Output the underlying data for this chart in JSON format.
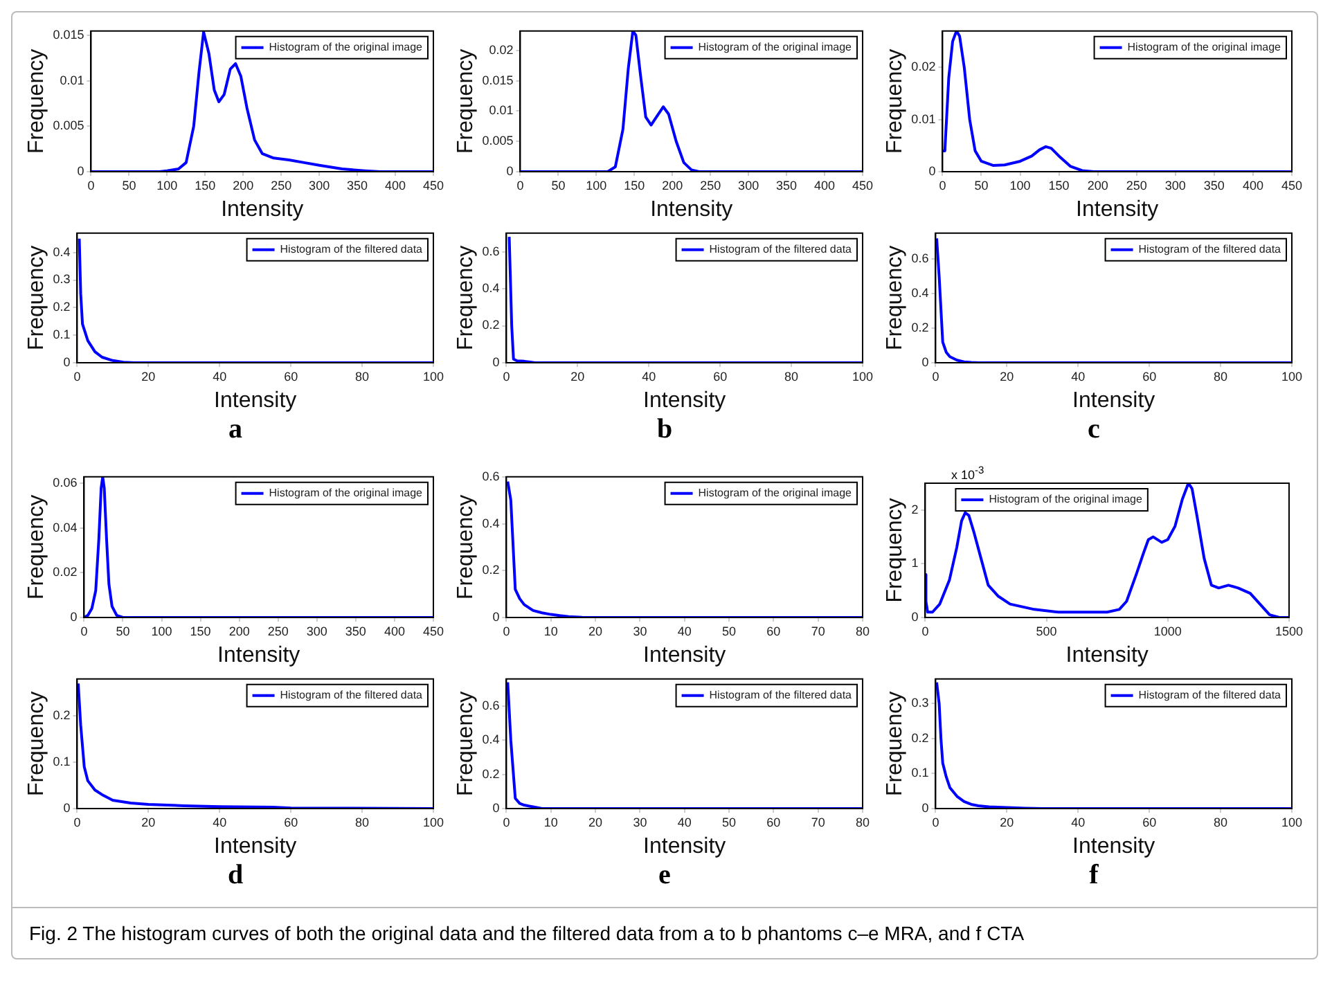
{
  "chart_data": [
    {
      "type": "line",
      "xlabel": "Intensity",
      "ylabel": "Frequency",
      "legend": "top right",
      "xlim": [
        0,
        450
      ],
      "ylim": [
        0,
        0.0155
      ],
      "xticks": [
        0,
        50,
        100,
        150,
        200,
        250,
        300,
        350,
        400,
        450
      ],
      "yticks": [
        0,
        0.005,
        0.01,
        0.015
      ],
      "x": [
        0,
        90,
        100,
        115,
        125,
        135,
        142,
        148,
        155,
        162,
        168,
        175,
        183,
        190,
        197,
        205,
        215,
        225,
        240,
        260,
        280,
        300,
        330,
        360,
        380,
        450
      ],
      "series": [
        {
          "name": "Histogram of the original image",
          "color": "#0000ff",
          "values": [
            0,
            0,
            0.0001,
            0.0003,
            0.001,
            0.005,
            0.011,
            0.0154,
            0.013,
            0.009,
            0.0077,
            0.0085,
            0.0113,
            0.0119,
            0.0105,
            0.007,
            0.0035,
            0.002,
            0.0015,
            0.0013,
            0.001,
            0.0007,
            0.0003,
            0.0001,
            0,
            0
          ]
        }
      ]
    },
    {
      "type": "line",
      "xlabel": "Intensity",
      "ylabel": "Frequency",
      "legend": "top right",
      "xlim": [
        0,
        450
      ],
      "ylim": [
        0,
        0.0232
      ],
      "xticks": [
        0,
        50,
        100,
        150,
        200,
        250,
        300,
        350,
        400,
        450
      ],
      "yticks": [
        0,
        0.005,
        0.01,
        0.015,
        0.02
      ],
      "x": [
        0,
        115,
        125,
        135,
        142,
        148,
        152,
        158,
        165,
        172,
        180,
        188,
        195,
        205,
        215,
        225,
        235,
        450
      ],
      "series": [
        {
          "name": "Histogram of the original image",
          "color": "#0000ff",
          "values": [
            0,
            0,
            0.0008,
            0.007,
            0.017,
            0.0232,
            0.0225,
            0.016,
            0.009,
            0.0077,
            0.0092,
            0.0107,
            0.0095,
            0.005,
            0.0015,
            0.0003,
            0,
            0
          ]
        }
      ]
    },
    {
      "type": "line",
      "xlabel": "Intensity",
      "ylabel": "Frequency",
      "legend": "top right",
      "xlim": [
        0,
        450
      ],
      "ylim": [
        0,
        0.027
      ],
      "xticks": [
        0,
        50,
        100,
        150,
        200,
        250,
        300,
        350,
        400,
        450
      ],
      "yticks": [
        0,
        0.01,
        0.02
      ],
      "x": [
        0,
        3,
        8,
        13,
        18,
        22,
        28,
        35,
        42,
        50,
        65,
        80,
        100,
        115,
        125,
        133,
        140,
        150,
        165,
        180,
        195,
        450
      ],
      "series": [
        {
          "name": "Histogram of the original image",
          "color": "#0000ff",
          "values": [
            0.004,
            0.004,
            0.018,
            0.025,
            0.027,
            0.026,
            0.02,
            0.01,
            0.004,
            0.002,
            0.0012,
            0.0013,
            0.002,
            0.003,
            0.0042,
            0.0048,
            0.0045,
            0.003,
            0.001,
            0.0002,
            0,
            0
          ]
        }
      ]
    },
    {
      "type": "line",
      "xlabel": "Intensity",
      "ylabel": "Frequency",
      "legend": "top right",
      "xlim": [
        0,
        100
      ],
      "ylim": [
        0,
        0.47
      ],
      "xticks": [
        0,
        20,
        40,
        60,
        80,
        100
      ],
      "yticks": [
        0,
        0.1,
        0.2,
        0.3,
        0.4
      ],
      "annotations": [
        "a"
      ],
      "x": [
        0.6,
        1,
        1.5,
        3,
        5,
        7,
        10,
        13,
        16,
        100
      ],
      "series": [
        {
          "name": "Histogram of the filtered data",
          "color": "#0000ff",
          "values": [
            0.45,
            0.25,
            0.14,
            0.08,
            0.04,
            0.02,
            0.008,
            0.002,
            0,
            0
          ]
        }
      ]
    },
    {
      "type": "line",
      "xlabel": "Intensity",
      "ylabel": "Frequency",
      "legend": "top right",
      "xlim": [
        0,
        100
      ],
      "ylim": [
        0,
        0.7
      ],
      "xticks": [
        0,
        20,
        40,
        60,
        80,
        100
      ],
      "yticks": [
        0,
        0.2,
        0.4,
        0.6
      ],
      "annotations": [
        "b"
      ],
      "x": [
        0.8,
        1.5,
        2,
        3,
        5,
        7,
        8,
        100
      ],
      "series": [
        {
          "name": "Histogram of the filtered data",
          "color": "#0000ff",
          "values": [
            0.68,
            0.2,
            0.02,
            0.01,
            0.008,
            0.003,
            0,
            0
          ]
        }
      ]
    },
    {
      "type": "line",
      "xlabel": "Intensity",
      "ylabel": "Frequency",
      "legend": "top right",
      "xlim": [
        0,
        100
      ],
      "ylim": [
        0,
        0.75
      ],
      "xticks": [
        0,
        20,
        40,
        60,
        80,
        100
      ],
      "yticks": [
        0,
        0.2,
        0.4,
        0.6
      ],
      "annotations": [
        "c"
      ],
      "x": [
        0.3,
        1,
        2,
        3,
        4,
        6,
        8,
        10,
        12,
        100
      ],
      "series": [
        {
          "name": "Histogram of the filtered data",
          "color": "#0000ff",
          "values": [
            0.72,
            0.5,
            0.12,
            0.06,
            0.035,
            0.015,
            0.005,
            0.002,
            0,
            0
          ]
        }
      ]
    },
    {
      "type": "line",
      "xlabel": "Intensity",
      "ylabel": "Frequency",
      "legend": "top right",
      "xlim": [
        0,
        450
      ],
      "ylim": [
        0,
        0.063
      ],
      "xticks": [
        0,
        50,
        100,
        150,
        200,
        250,
        300,
        350,
        400,
        450
      ],
      "yticks": [
        0,
        0.02,
        0.04,
        0.06
      ],
      "x": [
        0,
        5,
        10,
        15,
        19,
        22,
        24,
        26,
        29,
        32,
        36,
        42,
        50,
        450
      ],
      "series": [
        {
          "name": "Histogram of the original image",
          "color": "#0000ff",
          "values": [
            0,
            0.001,
            0.004,
            0.012,
            0.035,
            0.058,
            0.063,
            0.058,
            0.035,
            0.015,
            0.005,
            0.001,
            0,
            0
          ]
        }
      ]
    },
    {
      "type": "line",
      "xlabel": "Intensity",
      "ylabel": "Frequency",
      "legend": "top right",
      "xlim": [
        0,
        80
      ],
      "ylim": [
        0,
        0.6
      ],
      "xticks": [
        0,
        10,
        20,
        30,
        40,
        50,
        60,
        70,
        80
      ],
      "yticks": [
        0,
        0.2,
        0.4,
        0.6
      ],
      "x": [
        0.3,
        1,
        2,
        3,
        4,
        6,
        8,
        10,
        12,
        14,
        17,
        20,
        80
      ],
      "series": [
        {
          "name": "Histogram of the original image",
          "color": "#0000ff",
          "values": [
            0.58,
            0.5,
            0.12,
            0.08,
            0.055,
            0.03,
            0.02,
            0.013,
            0.008,
            0.004,
            0.001,
            0,
            0
          ]
        }
      ]
    },
    {
      "type": "line",
      "xlabel": "Intensity",
      "ylabel": "Frequency",
      "legend": "top left",
      "xlim": [
        0,
        1500
      ],
      "ylim": [
        0,
        2.5
      ],
      "xticks": [
        0,
        500,
        1000,
        1500
      ],
      "yticks": [
        0,
        1,
        2
      ],
      "annotations": [
        "x 10$^{-3}$"
      ],
      "x": [
        0,
        3,
        10,
        30,
        60,
        100,
        130,
        150,
        165,
        180,
        200,
        230,
        260,
        300,
        350,
        450,
        550,
        650,
        750,
        800,
        830,
        870,
        900,
        920,
        940,
        975,
        1000,
        1030,
        1060,
        1085,
        1100,
        1120,
        1150,
        1180,
        1210,
        1250,
        1290,
        1340,
        1380,
        1420,
        1460,
        1500
      ],
      "series": [
        {
          "name": "Histogram of the original image",
          "color": "#0000ff",
          "values": [
            0.8,
            0.3,
            0.1,
            0.1,
            0.25,
            0.7,
            1.3,
            1.8,
            1.95,
            1.9,
            1.6,
            1.1,
            0.6,
            0.4,
            0.25,
            0.15,
            0.1,
            0.1,
            0.1,
            0.15,
            0.3,
            0.8,
            1.2,
            1.45,
            1.5,
            1.4,
            1.45,
            1.7,
            2.2,
            2.5,
            2.4,
            1.9,
            1.1,
            0.6,
            0.55,
            0.6,
            0.55,
            0.45,
            0.25,
            0.05,
            0,
            0
          ]
        }
      ]
    },
    {
      "type": "line",
      "xlabel": "Intensity",
      "ylabel": "Frequency",
      "legend": "top right",
      "xlim": [
        0,
        100
      ],
      "ylim": [
        0,
        0.28
      ],
      "xticks": [
        0,
        20,
        40,
        60,
        80,
        100
      ],
      "yticks": [
        0,
        0.1,
        0.2
      ],
      "annotations": [
        "d"
      ],
      "x": [
        0.3,
        1,
        2,
        3,
        5,
        7,
        10,
        15,
        20,
        30,
        40,
        55,
        60,
        100
      ],
      "series": [
        {
          "name": "Histogram of the filtered data",
          "color": "#0000ff",
          "values": [
            0.27,
            0.18,
            0.09,
            0.06,
            0.04,
            0.03,
            0.018,
            0.012,
            0.009,
            0.006,
            0.004,
            0.003,
            0.001,
            0
          ]
        }
      ]
    },
    {
      "type": "line",
      "xlabel": "Intensity",
      "ylabel": "Frequency",
      "legend": "top right",
      "xlim": [
        0,
        80
      ],
      "ylim": [
        0,
        0.76
      ],
      "xticks": [
        0,
        10,
        20,
        30,
        40,
        50,
        60,
        70,
        80
      ],
      "yticks": [
        0,
        0.2,
        0.4,
        0.6
      ],
      "annotations": [
        "e"
      ],
      "x": [
        0.3,
        1,
        2,
        3,
        4,
        6,
        8,
        80
      ],
      "series": [
        {
          "name": "Histogram of the filtered data",
          "color": "#0000ff",
          "values": [
            0.74,
            0.4,
            0.06,
            0.03,
            0.02,
            0.01,
            0,
            0
          ]
        }
      ]
    },
    {
      "type": "line",
      "xlabel": "Intensity",
      "ylabel": "Frequency",
      "legend": "top right",
      "xlim": [
        0,
        100
      ],
      "ylim": [
        0,
        0.37
      ],
      "xticks": [
        0,
        20,
        40,
        60,
        80,
        100
      ],
      "yticks": [
        0,
        0.1,
        0.2,
        0.3
      ],
      "annotations": [
        "f",
        "Fig. 2 The histogram curves of both the original data and the filtered data from a to b phantoms c–e MRA, and f CTA"
      ],
      "x": [
        0.3,
        1,
        1.5,
        2,
        3,
        4,
        6,
        8,
        10,
        12,
        15,
        20,
        25,
        30,
        100
      ],
      "series": [
        {
          "name": "Histogram of the filtered data",
          "color": "#0000ff",
          "values": [
            0.36,
            0.3,
            0.2,
            0.13,
            0.09,
            0.06,
            0.035,
            0.02,
            0.012,
            0.008,
            0.005,
            0.003,
            0.001,
            0,
            0
          ]
        }
      ]
    }
  ]
}
